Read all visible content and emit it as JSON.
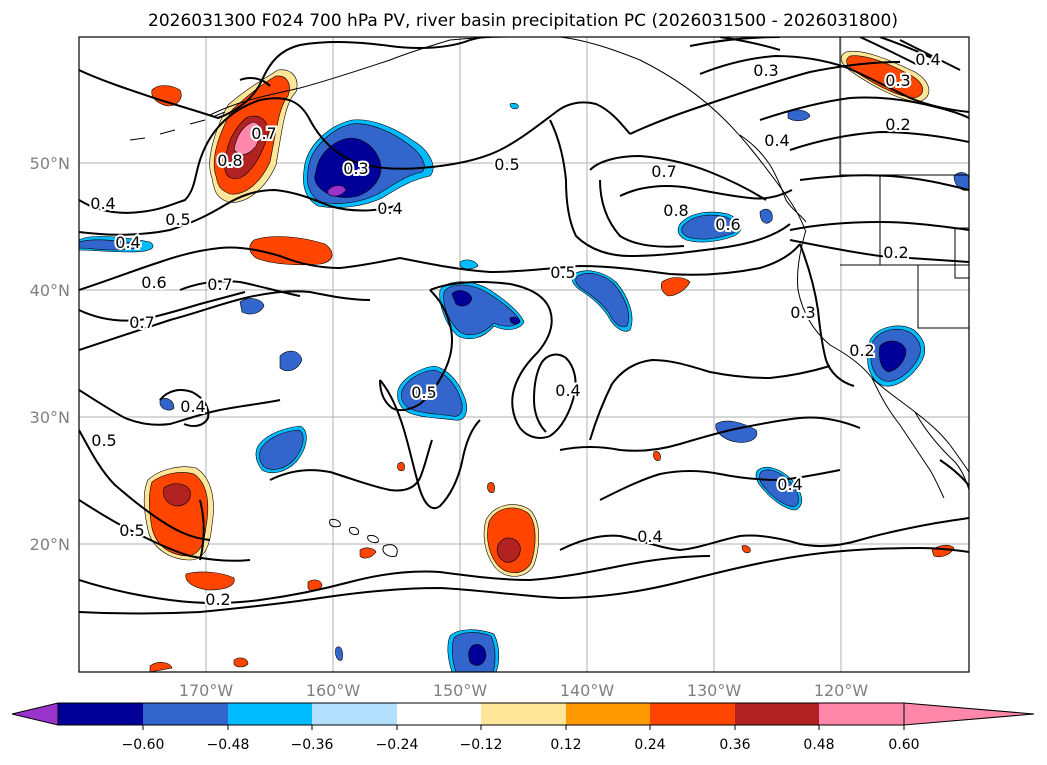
{
  "title": "2026031300 F024 700 hPa PV, river basin precipitation PC (2026031500 - 2026031800)",
  "map": {
    "lat_labels": [
      "50°N",
      "40°N",
      "30°N",
      "20°N"
    ],
    "lon_labels": [
      "170°W",
      "160°W",
      "150°W",
      "140°W",
      "130°W",
      "120°W"
    ],
    "gridline_color": "#b0b0b0",
    "coast_color": "#000000"
  },
  "contour_labels": [
    "0.3",
    "0.4",
    "0.3",
    "0.2",
    "0.7",
    "0.8",
    "0.4",
    "0.5",
    "0.4",
    "0.7",
    "0.8",
    "0.6",
    "0.2",
    "0.4",
    "0.3",
    "0.5",
    "0.5",
    "0.6",
    "0.7",
    "0.7",
    "0.3",
    "0.2",
    "0.5",
    "0.4",
    "0.4",
    "0.5",
    "0.5",
    "0.4",
    "0.4",
    "0.4",
    "0.2"
  ],
  "colorbar": {
    "ticks": [
      "−0.60",
      "−0.48",
      "−0.36",
      "−0.24",
      "−0.12",
      "0.12",
      "0.24",
      "0.36",
      "0.48",
      "0.60"
    ],
    "colors": [
      "#9933cc",
      "#000099",
      "#3366cc",
      "#00bbff",
      "#b3e0ff",
      "#ffffff",
      "#ffe699",
      "#ff9900",
      "#ff4500",
      "#b22222",
      "#ff88aa"
    ]
  }
}
